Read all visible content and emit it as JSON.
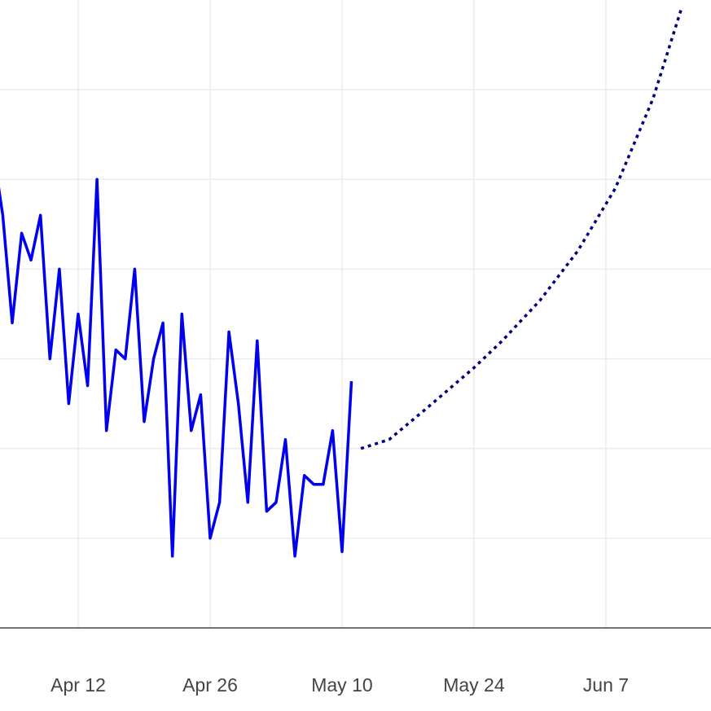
{
  "chart_data": {
    "type": "line",
    "title": "",
    "xlabel": "",
    "ylabel": "",
    "xlim": [
      "2024-03-31",
      "2024-06-20"
    ],
    "ylim": [
      0,
      7
    ],
    "grid": true,
    "x_ticks": [
      {
        "date": "2024-04-12",
        "label": "Apr 12"
      },
      {
        "date": "2024-04-26",
        "label": "Apr 26"
      },
      {
        "date": "2024-05-10",
        "label": "May 10"
      },
      {
        "date": "2024-05-24",
        "label": "May 24"
      },
      {
        "date": "2024-06-07",
        "label": "Jun 7"
      }
    ],
    "y_gridlines": [
      1,
      2,
      3,
      4,
      5,
      6
    ],
    "series": [
      {
        "style": "solid",
        "color": "#0000ee",
        "points": [
          [
            "2024-03-31",
            5.1
          ],
          [
            "2024-04-01",
            5.3
          ],
          [
            "2024-04-02",
            2.6
          ],
          [
            "2024-04-03",
            5.3
          ],
          [
            "2024-04-04",
            4.6
          ],
          [
            "2024-04-05",
            3.4
          ],
          [
            "2024-04-06",
            4.4
          ],
          [
            "2024-04-07",
            4.1
          ],
          [
            "2024-04-08",
            4.6
          ],
          [
            "2024-04-09",
            3.0
          ],
          [
            "2024-04-10",
            4.0
          ],
          [
            "2024-04-11",
            2.5
          ],
          [
            "2024-04-12",
            3.5
          ],
          [
            "2024-04-13",
            2.7
          ],
          [
            "2024-04-14",
            5.0
          ],
          [
            "2024-04-15",
            2.2
          ],
          [
            "2024-04-16",
            3.1
          ],
          [
            "2024-04-17",
            3.0
          ],
          [
            "2024-04-18",
            4.0
          ],
          [
            "2024-04-19",
            2.3
          ],
          [
            "2024-04-20",
            3.0
          ],
          [
            "2024-04-21",
            3.4
          ],
          [
            "2024-04-22",
            0.8
          ],
          [
            "2024-04-23",
            3.5
          ],
          [
            "2024-04-24",
            2.2
          ],
          [
            "2024-04-25",
            2.6
          ],
          [
            "2024-04-26",
            1.0
          ],
          [
            "2024-04-27",
            1.4
          ],
          [
            "2024-04-28",
            3.3
          ],
          [
            "2024-04-29",
            2.5
          ],
          [
            "2024-04-30",
            1.4
          ],
          [
            "2024-05-01",
            3.2
          ],
          [
            "2024-05-02",
            1.3
          ],
          [
            "2024-05-03",
            1.4
          ],
          [
            "2024-05-04",
            2.1
          ],
          [
            "2024-05-05",
            0.8
          ],
          [
            "2024-05-06",
            1.7
          ],
          [
            "2024-05-07",
            1.6
          ],
          [
            "2024-05-08",
            1.6
          ],
          [
            "2024-05-09",
            2.2
          ],
          [
            "2024-05-10",
            0.85
          ],
          [
            "2024-05-11",
            2.75
          ]
        ]
      },
      {
        "style": "dotted",
        "color": "#000080",
        "points": [
          [
            "2024-05-12",
            2.0
          ],
          [
            "2024-05-15",
            2.1
          ],
          [
            "2024-05-19",
            2.45
          ],
          [
            "2024-05-24",
            2.9
          ],
          [
            "2024-05-27",
            3.2
          ],
          [
            "2024-05-31",
            3.65
          ],
          [
            "2024-06-04",
            4.2
          ],
          [
            "2024-06-08",
            4.9
          ],
          [
            "2024-06-12",
            5.9
          ],
          [
            "2024-06-15",
            6.9
          ]
        ]
      }
    ]
  },
  "colors": {
    "grid": "#ebebeb",
    "axis": "#444444"
  }
}
